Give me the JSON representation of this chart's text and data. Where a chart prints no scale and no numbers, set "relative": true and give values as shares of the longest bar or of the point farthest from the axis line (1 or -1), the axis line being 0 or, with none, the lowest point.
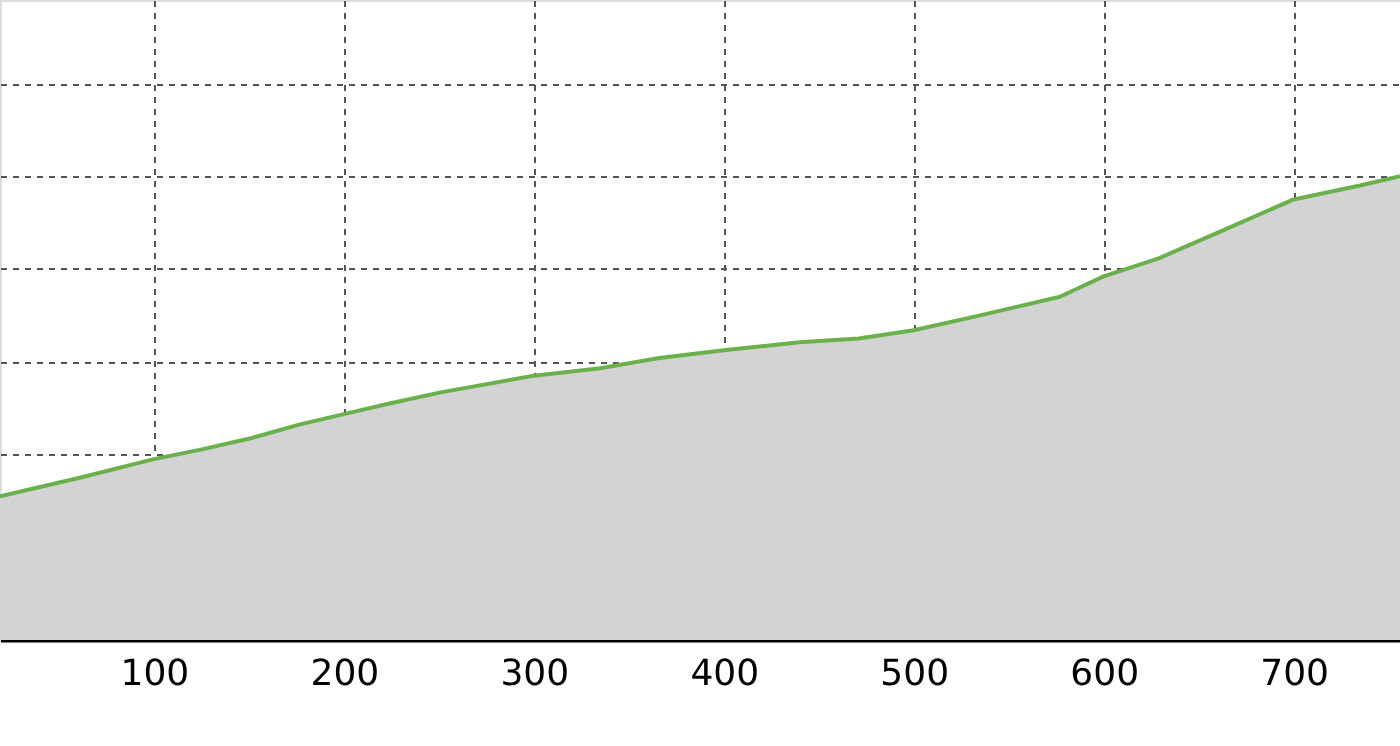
{
  "chart_data": {
    "type": "area",
    "relative": true,
    "x": [
      19,
      40,
      61,
      100,
      124,
      151,
      177,
      200,
      224,
      251,
      300,
      335,
      366,
      400,
      440,
      471,
      500,
      535,
      577,
      600,
      629,
      661,
      700,
      735,
      756
    ],
    "series": [
      {
        "color": "#6ab04c",
        "values": [
          0.31,
          0.33,
          0.35,
          0.39,
          0.41,
          0.435,
          0.465,
          0.487,
          0.51,
          0.534,
          0.57,
          0.586,
          0.608,
          0.625,
          0.642,
          0.65,
          0.668,
          0.7,
          0.74,
          0.784,
          0.823,
          0.88,
          0.95,
          0.98,
          1.0
        ]
      }
    ],
    "xlim": [
      19,
      756
    ],
    "xticks": [
      100,
      200,
      300,
      400,
      500,
      600,
      700
    ],
    "grid": true
  }
}
